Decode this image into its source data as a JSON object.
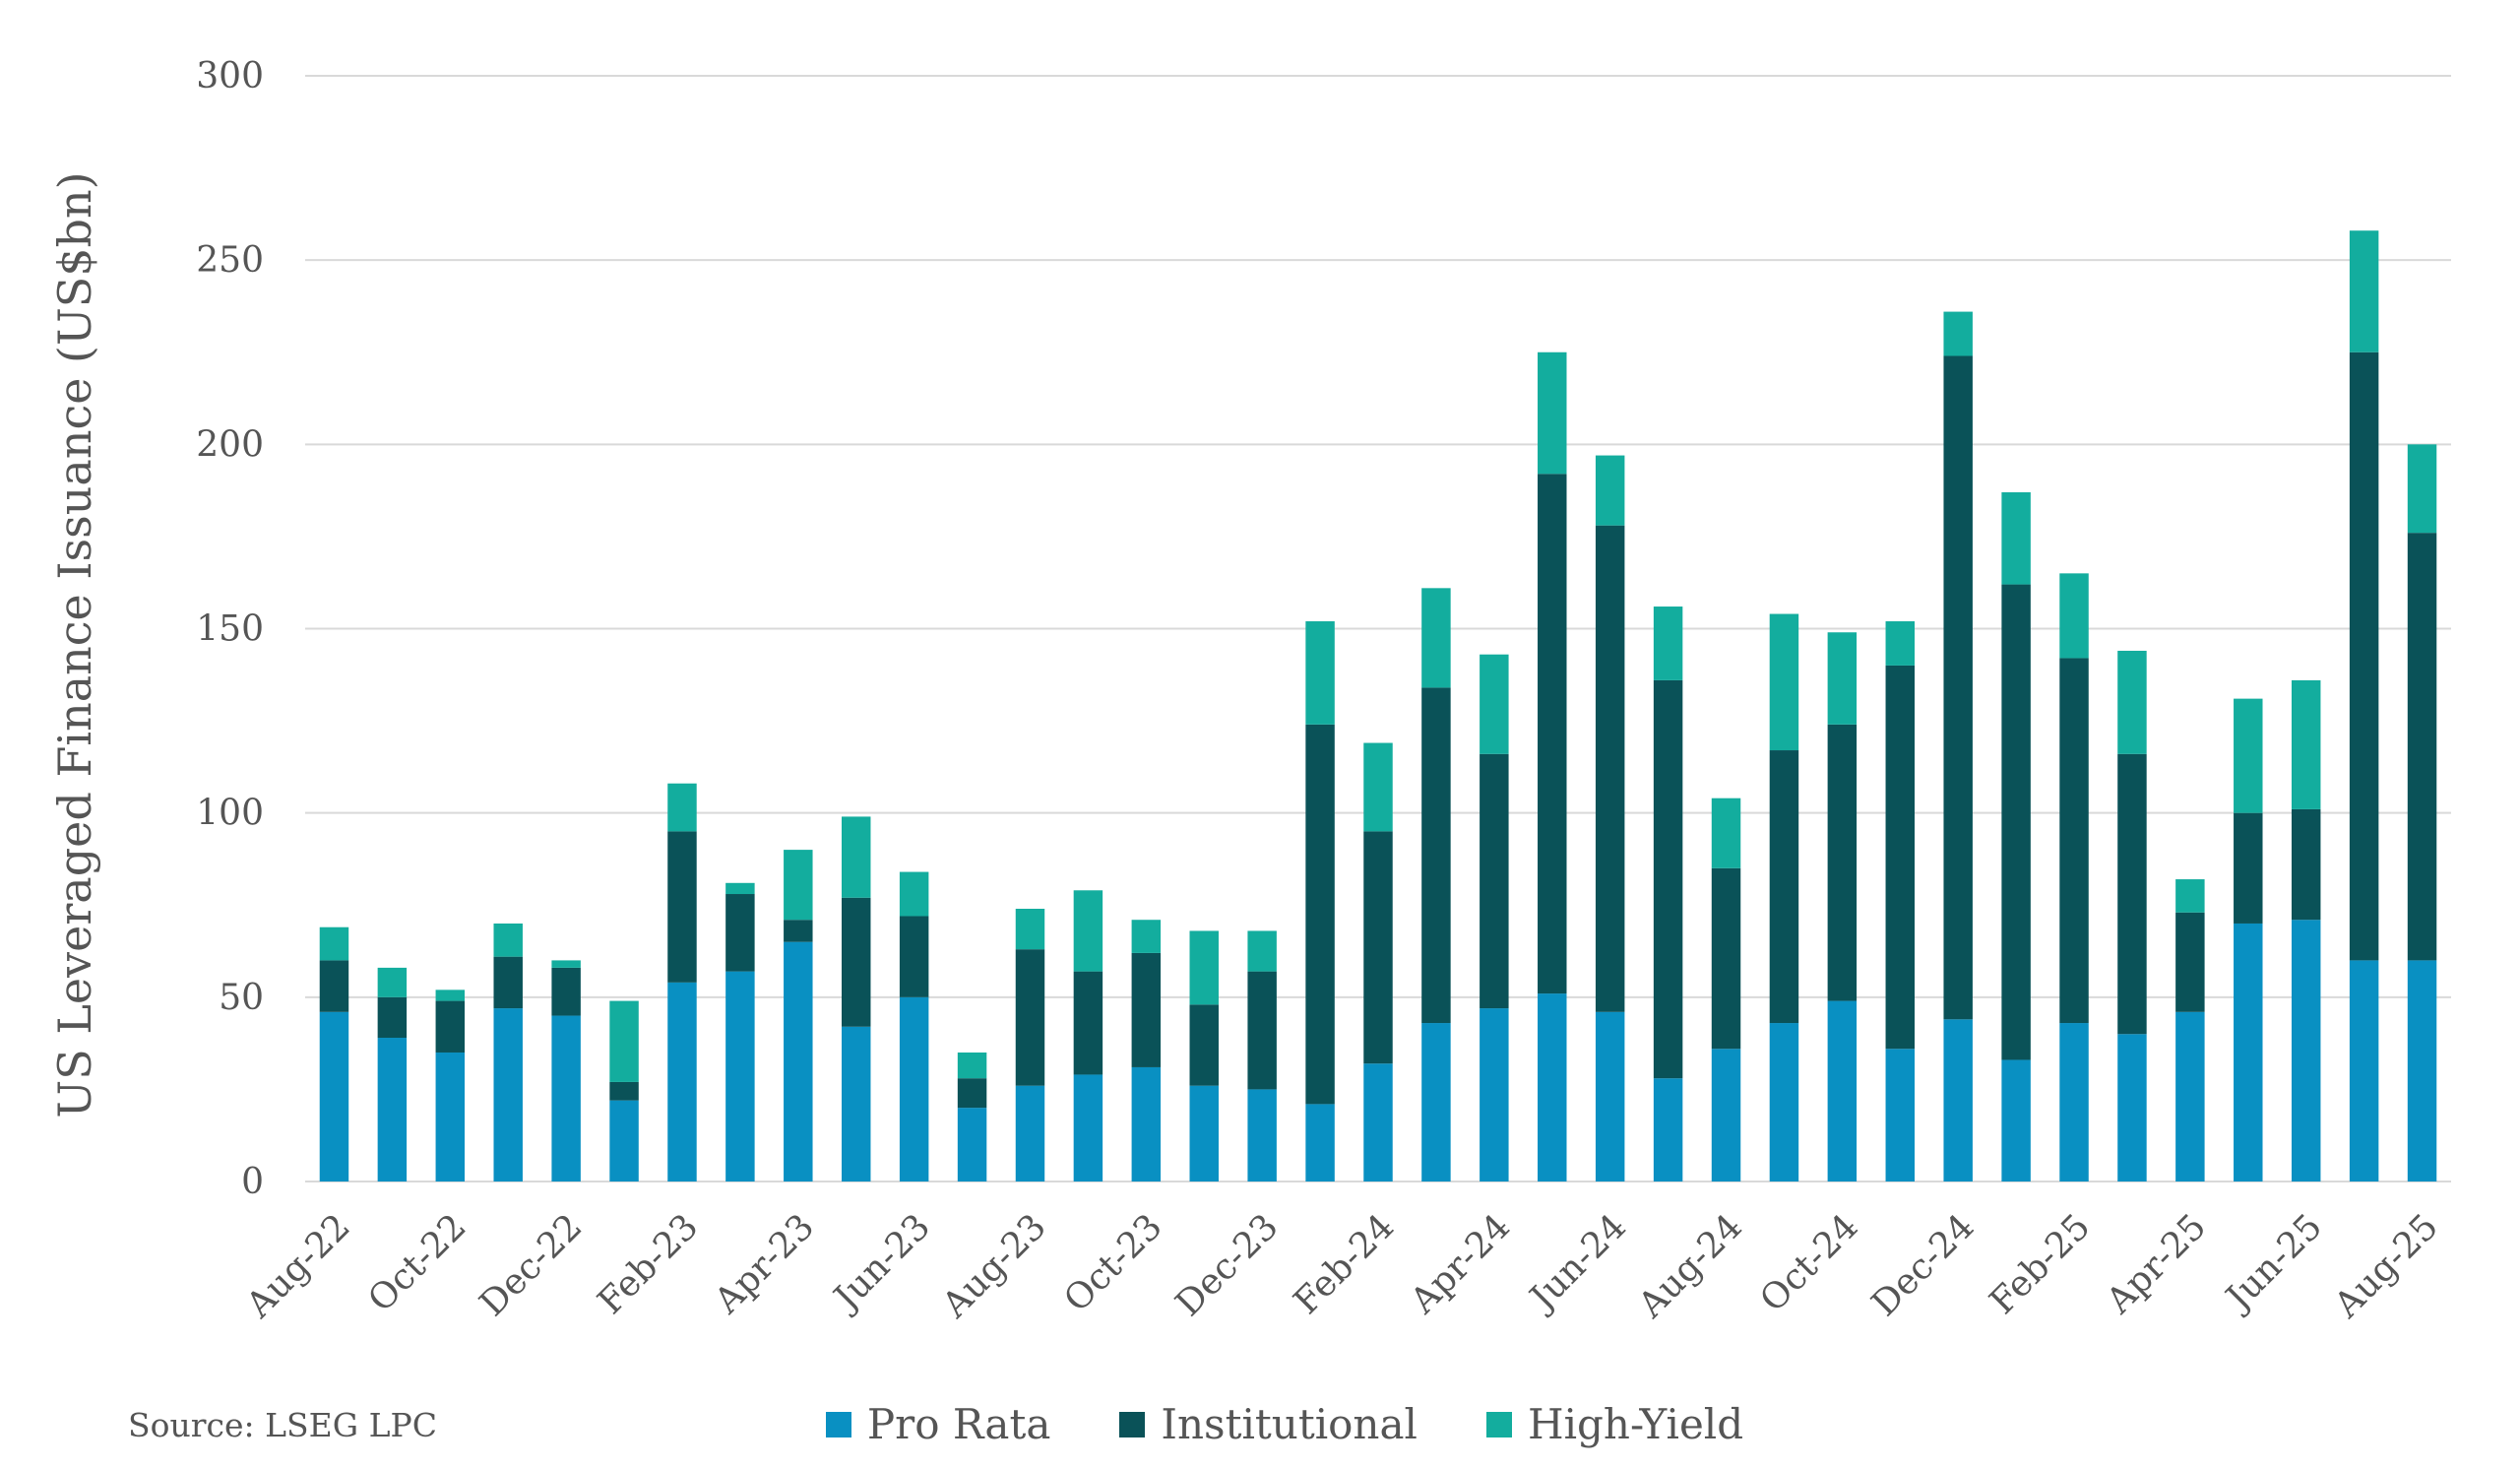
{
  "chart_data": {
    "type": "bar",
    "stacked": true,
    "title": "",
    "xlabel": "",
    "ylabel": "US Leveraged Finance Issuance (US$bn)",
    "ylim": [
      0,
      300
    ],
    "yticks": [
      0,
      50,
      100,
      150,
      200,
      250,
      300
    ],
    "grid": "horizontal",
    "legend_position": "bottom",
    "categories": [
      "Aug-22",
      "Sep-22",
      "Oct-22",
      "Nov-22",
      "Dec-22",
      "Jan-23",
      "Feb-23",
      "Mar-23",
      "Apr-23",
      "May-23",
      "Jun-23",
      "Jul-23",
      "Aug-23",
      "Sep-23",
      "Oct-23",
      "Nov-23",
      "Dec-23",
      "Jan-24",
      "Feb-24",
      "Mar-24",
      "Apr-24",
      "May-24",
      "Jun-24",
      "Jul-24",
      "Aug-24",
      "Sep-24",
      "Oct-24",
      "Nov-24",
      "Dec-24",
      "Jan-25",
      "Feb-25",
      "Mar-25",
      "Apr-25",
      "May-25",
      "Jun-25",
      "Jul-25",
      "Aug-25"
    ],
    "x_tick_labels": [
      "Aug-22",
      "Oct-22",
      "Dec-22",
      "Feb-23",
      "Apr-23",
      "Jun-23",
      "Aug-23",
      "Oct-23",
      "Dec-23",
      "Feb-24",
      "Apr-24",
      "Jun-24",
      "Aug-24",
      "Oct-24",
      "Dec-24",
      "Feb-25",
      "Apr-25",
      "Jun-25",
      "Aug-25"
    ],
    "series": [
      {
        "name": "Pro Rata",
        "color": "#0990c2",
        "values": [
          46,
          39,
          35,
          47,
          45,
          22,
          54,
          57,
          65,
          42,
          50,
          20,
          26,
          29,
          31,
          26,
          25,
          21,
          32,
          43,
          47,
          51,
          46,
          28,
          36,
          43,
          49,
          36,
          44,
          33,
          43,
          40,
          46,
          70,
          71,
          60,
          60
        ]
      },
      {
        "name": "Institutional",
        "color": "#0a5258",
        "values": [
          14,
          11,
          14,
          14,
          13,
          5,
          41,
          21,
          6,
          35,
          22,
          8,
          37,
          28,
          31,
          22,
          32,
          103,
          63,
          91,
          69,
          141,
          132,
          108,
          49,
          74,
          75,
          104,
          180,
          129,
          99,
          76,
          27,
          30,
          30,
          165,
          116
        ]
      },
      {
        "name": "High-Yield",
        "color": "#13ad9e",
        "values": [
          9,
          8,
          3,
          9,
          2,
          22,
          13,
          3,
          19,
          22,
          12,
          7,
          11,
          22,
          9,
          20,
          11,
          28,
          24,
          27,
          27,
          33,
          19,
          20,
          19,
          37,
          25,
          12,
          12,
          25,
          23,
          28,
          9,
          31,
          35,
          33,
          24
        ]
      }
    ]
  },
  "source": "Source: LSEG LPC"
}
